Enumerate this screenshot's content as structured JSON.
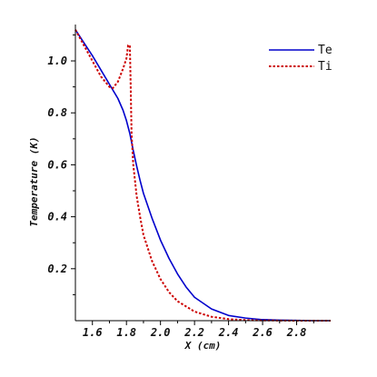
{
  "chart_data": {
    "type": "line",
    "title": "",
    "xlabel": "X (cm)",
    "ylabel": "Temperature (K)",
    "xlim": [
      1.5,
      3.0
    ],
    "ylim": [
      0.0,
      1.14
    ],
    "x_ticks": [
      1.6,
      1.8,
      2.0,
      2.2,
      2.4,
      2.6,
      2.8
    ],
    "x_tick_labels": [
      "1.6",
      "1.8",
      "2.0",
      "2.2",
      "2.4",
      "2.6",
      "2.8"
    ],
    "y_ticks": [
      0.2,
      0.4,
      0.6,
      0.8,
      1.0
    ],
    "y_tick_labels": [
      "0.2",
      "0.4",
      "0.6",
      "0.8",
      "1.0"
    ],
    "grid": false,
    "legend_position": "top-right",
    "series": [
      {
        "name": "Te",
        "color": "#0000cc",
        "style": "solid",
        "x": [
          1.5,
          1.55,
          1.6,
          1.65,
          1.7,
          1.75,
          1.78,
          1.8,
          1.82,
          1.84,
          1.86,
          1.88,
          1.9,
          1.95,
          2.0,
          2.05,
          2.1,
          2.15,
          2.2,
          2.3,
          2.4,
          2.5,
          2.6,
          2.7,
          2.8,
          2.9,
          3.0
        ],
        "values": [
          1.12,
          1.07,
          1.02,
          0.965,
          0.91,
          0.855,
          0.81,
          0.77,
          0.72,
          0.655,
          0.595,
          0.54,
          0.49,
          0.395,
          0.31,
          0.24,
          0.18,
          0.13,
          0.09,
          0.045,
          0.02,
          0.01,
          0.004,
          0.002,
          0.001,
          0.0,
          0.0
        ]
      },
      {
        "name": "Ti",
        "color": "#cc0000",
        "style": "dotted",
        "x": [
          1.5,
          1.55,
          1.6,
          1.65,
          1.7,
          1.72,
          1.75,
          1.78,
          1.8,
          1.81,
          1.82,
          1.825,
          1.83,
          1.84,
          1.86,
          1.88,
          1.9,
          1.95,
          2.0,
          2.05,
          2.1,
          2.2,
          2.3,
          2.4,
          2.5,
          2.6,
          2.8,
          3.0
        ],
        "values": [
          1.12,
          1.06,
          1.0,
          0.94,
          0.9,
          0.895,
          0.92,
          0.97,
          1.01,
          1.06,
          1.06,
          0.9,
          0.72,
          0.6,
          0.48,
          0.4,
          0.33,
          0.23,
          0.16,
          0.11,
          0.075,
          0.035,
          0.015,
          0.006,
          0.002,
          0.001,
          0.0,
          0.0
        ]
      }
    ]
  }
}
